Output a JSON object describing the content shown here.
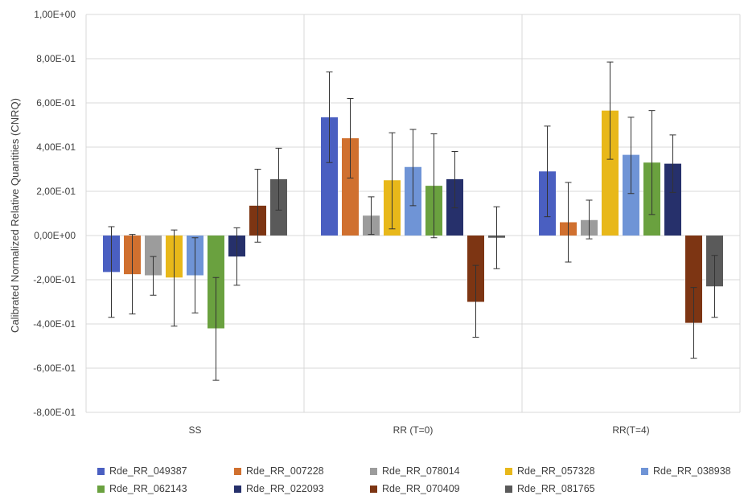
{
  "chart_data": {
    "type": "bar",
    "title": "",
    "xlabel": "",
    "ylabel": "Calibrated Normalized Relative Quantities (CNRQ)",
    "ylim": [
      -0.8,
      1.0
    ],
    "ytick_values": [
      1.0,
      0.8,
      0.6,
      0.4,
      0.2,
      0.0,
      -0.2,
      -0.4,
      -0.6,
      -0.8
    ],
    "ytick_labels": [
      "1,00E+00",
      "8,00E-01",
      "6,00E-01",
      "4,00E-01",
      "2,00E-01",
      "0,00E+00",
      "-2,00E-01",
      "-4,00E-01",
      "-6,00E-01",
      "-8,00E-01"
    ],
    "grid": true,
    "legend_position": "bottom",
    "categories": [
      "SS",
      "RR (T=0)",
      "RR(T=4)"
    ],
    "series": [
      {
        "name": "Rde_RR_049387",
        "color": "#4a5fc1",
        "values": [
          -0.165,
          0.535,
          0.29
        ],
        "err_low": [
          -0.37,
          0.33,
          0.085
        ],
        "err_high": [
          0.04,
          0.74,
          0.495
        ]
      },
      {
        "name": "Rde_RR_007228",
        "color": "#d0702f",
        "values": [
          -0.175,
          0.44,
          0.06
        ],
        "err_low": [
          -0.355,
          0.26,
          -0.12
        ],
        "err_high": [
          0.005,
          0.62,
          0.24
        ]
      },
      {
        "name": "Rde_RR_078014",
        "color": "#9c9c9c",
        "values": [
          -0.18,
          0.09,
          0.07
        ],
        "err_low": [
          -0.27,
          0.005,
          -0.015
        ],
        "err_high": [
          -0.095,
          0.175,
          0.16
        ]
      },
      {
        "name": "Rde_RR_057328",
        "color": "#e8b81a",
        "values": [
          -0.19,
          0.25,
          0.565
        ],
        "err_low": [
          -0.41,
          0.03,
          0.345
        ],
        "err_high": [
          0.025,
          0.465,
          0.785
        ]
      },
      {
        "name": "Rde_RR_038938",
        "color": "#6f94d6",
        "values": [
          -0.18,
          0.31,
          0.365
        ],
        "err_low": [
          -0.35,
          0.135,
          0.19
        ],
        "err_high": [
          -0.01,
          0.48,
          0.535
        ]
      },
      {
        "name": "Rde_RR_062143",
        "color": "#6aa13f",
        "values": [
          -0.42,
          0.225,
          0.33
        ],
        "err_low": [
          -0.655,
          -0.01,
          0.095
        ],
        "err_high": [
          -0.19,
          0.46,
          0.565
        ]
      },
      {
        "name": "Rde_RR_022093",
        "color": "#26306b",
        "values": [
          -0.095,
          0.255,
          0.325
        ],
        "err_low": [
          -0.225,
          0.125,
          0.195
        ],
        "err_high": [
          0.035,
          0.38,
          0.455
        ]
      },
      {
        "name": "Rde_RR_070409",
        "color": "#7d3513",
        "values": [
          0.135,
          -0.3,
          -0.395
        ],
        "err_low": [
          -0.03,
          -0.46,
          -0.555
        ],
        "err_high": [
          0.3,
          -0.135,
          -0.235
        ]
      },
      {
        "name": "Rde_RR_081765",
        "color": "#5a5a5a",
        "values": [
          0.255,
          -0.01,
          -0.23
        ],
        "err_low": [
          0.115,
          -0.15,
          -0.37
        ],
        "err_high": [
          0.395,
          0.13,
          -0.09
        ]
      }
    ]
  }
}
